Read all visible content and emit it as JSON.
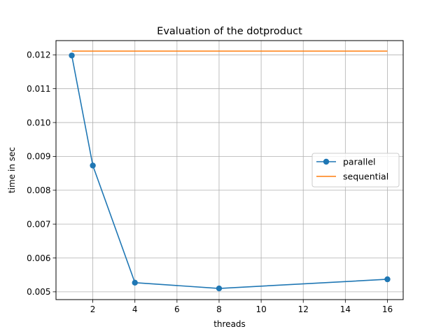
{
  "chart_data": {
    "type": "line",
    "title": "Evaluation of the dotproduct",
    "xlabel": "threads",
    "ylabel": "time in sec",
    "xlim": [
      0.25,
      16.75
    ],
    "ylim": [
      0.00477,
      0.01242
    ],
    "xticks": [
      2,
      4,
      6,
      8,
      10,
      12,
      14,
      16
    ],
    "xtick_labels": [
      "2",
      "4",
      "6",
      "8",
      "10",
      "12",
      "14",
      "16"
    ],
    "yticks": [
      0.005,
      0.006,
      0.007,
      0.008,
      0.009,
      0.01,
      0.011,
      0.012
    ],
    "ytick_labels": [
      "0.005",
      "0.006",
      "0.007",
      "0.008",
      "0.009",
      "0.010",
      "0.011",
      "0.012"
    ],
    "grid": true,
    "legend_position": "center-right",
    "series": [
      {
        "name": "parallel",
        "color": "#1f77b4",
        "marker": "circle",
        "x": [
          1,
          2,
          4,
          8,
          16
        ],
        "y": [
          0.01198,
          0.00873,
          0.00527,
          0.0051,
          0.00537
        ]
      },
      {
        "name": "sequential",
        "color": "#ff7f0e",
        "marker": "none",
        "x": [
          1,
          2,
          4,
          8,
          16
        ],
        "y": [
          0.01211,
          0.01211,
          0.01211,
          0.01211,
          0.01211
        ]
      }
    ]
  }
}
